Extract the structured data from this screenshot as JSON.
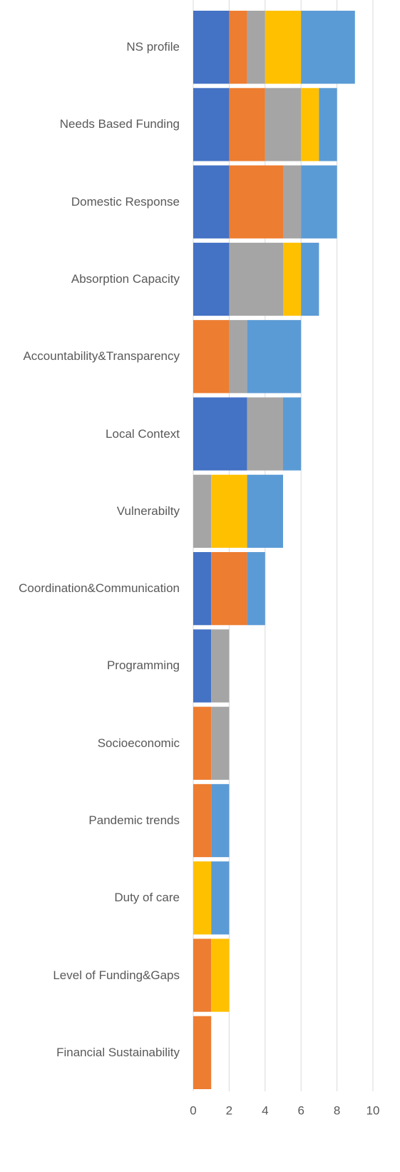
{
  "chart_data": {
    "type": "stacked-bar-horizontal",
    "categories": [
      "NS profile",
      "Needs Based Funding",
      "Domestic Response",
      "Absorption Capacity",
      "Accountability&Transparency",
      "Local Context",
      "Vulnerabilty",
      "Coordination&Communication",
      "Programming",
      "Socioeconomic",
      "Pandemic trends",
      "Duty of care",
      "Level of Funding&Gaps",
      "Financial Sustainability"
    ],
    "series": [
      {
        "color": "#4472c4",
        "values": [
          2,
          2,
          2,
          2,
          0,
          3,
          0,
          1,
          1,
          0,
          0,
          0,
          0,
          0
        ]
      },
      {
        "color": "#ed7d31",
        "values": [
          1,
          2,
          3,
          0,
          2,
          0,
          0,
          2,
          0,
          1,
          1,
          0,
          1,
          1
        ]
      },
      {
        "color": "#a5a5a5",
        "values": [
          1,
          2,
          1,
          3,
          1,
          2,
          1,
          0,
          1,
          1,
          0,
          0,
          0,
          0
        ]
      },
      {
        "color": "#ffc000",
        "values": [
          2,
          1,
          0,
          1,
          0,
          0,
          2,
          0,
          0,
          0,
          0,
          1,
          1,
          0
        ]
      },
      {
        "color": "#5b9bd5",
        "values": [
          3,
          1,
          2,
          1,
          3,
          1,
          2,
          1,
          0,
          0,
          1,
          1,
          0,
          0
        ]
      }
    ],
    "xlim": [
      0,
      10
    ],
    "xticks": [
      0,
      2,
      4,
      6,
      8,
      10
    ],
    "grid": true
  }
}
